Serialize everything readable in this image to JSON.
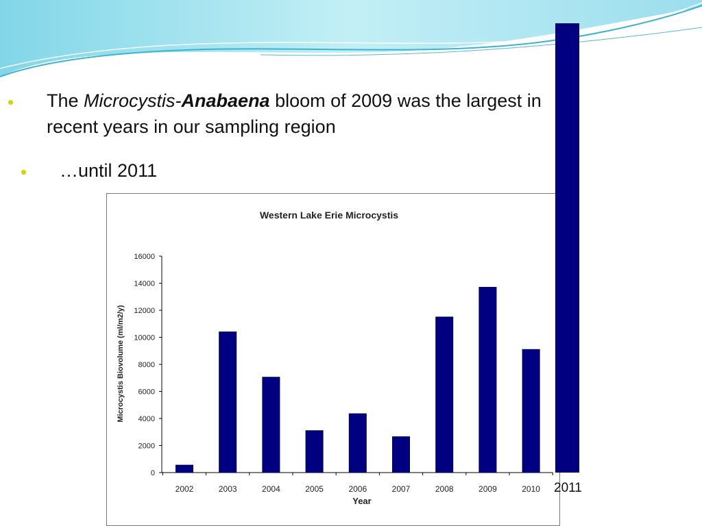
{
  "slide": {
    "bullet1": {
      "prefix": "The ",
      "italic_word": "Microcystis-",
      "bold_italic_word": "Anabaena",
      "suffix": " bloom of 2009 was the largest in recent years in our sampling region"
    },
    "bullet2": {
      "text": "…until 2011"
    },
    "colors": {
      "accent_bullet": "#d2d400",
      "bar_fill": "#000080",
      "wave_light": "#c8eef6",
      "wave_dark": "#5cc4dc"
    }
  },
  "extra_bar": {
    "category": "2011",
    "color": "#000080"
  },
  "chart_data": {
    "type": "bar",
    "title": "Western Lake Erie Microcystis",
    "xlabel": "Year",
    "ylabel": "Microcystis Biovolume (ml/m2/y)",
    "ylim": [
      0,
      16000
    ],
    "yticks": [
      0,
      2000,
      4000,
      6000,
      8000,
      10000,
      12000,
      14000,
      16000
    ],
    "categories": [
      "2002",
      "2003",
      "2004",
      "2005",
      "2006",
      "2007",
      "2008",
      "2009",
      "2010"
    ],
    "values": [
      550,
      10400,
      7050,
      3100,
      4350,
      2650,
      11500,
      13700,
      9100
    ],
    "grid": false,
    "legend": "none"
  }
}
